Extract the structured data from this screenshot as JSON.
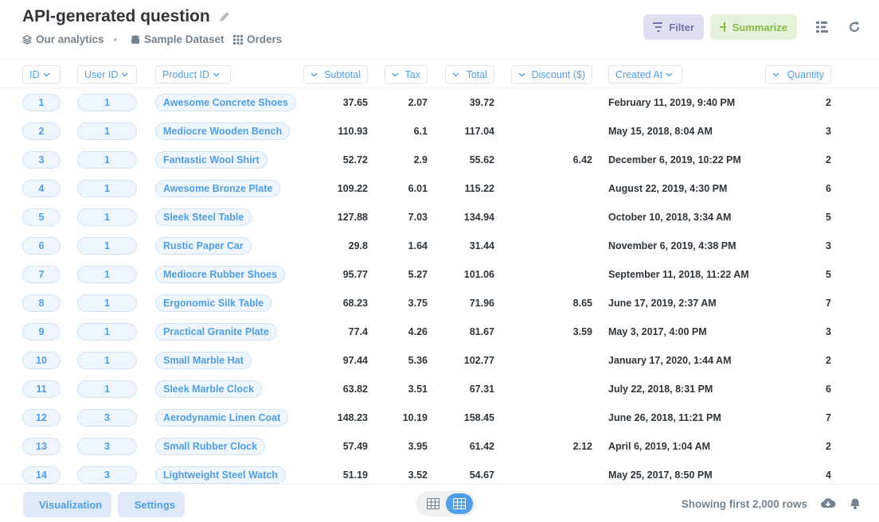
{
  "header": {
    "title": "API-generated question",
    "breadcrumbs": [
      "Our analytics",
      "Sample Dataset",
      "Orders"
    ],
    "buttons": [
      "Filter",
      "Summarize"
    ]
  },
  "table": {
    "columns": [
      "ID",
      "User ID",
      "Product ID",
      "Subtotal",
      "Tax",
      "Total",
      "Discount ($)",
      "Created At",
      "Quantity"
    ],
    "rows": [
      [
        1,
        1,
        "Awesome Concrete Shoes",
        37.65,
        2.07,
        39.72,
        null,
        "February 11, 2019, 9:40 PM",
        2
      ],
      [
        2,
        1,
        "Mediocre Wooden Bench",
        110.93,
        6.1,
        117.04,
        null,
        "May 15, 2018, 8:04 AM",
        3
      ],
      [
        3,
        1,
        "Fantastic Wool Shirt",
        52.72,
        2.9,
        55.62,
        6.42,
        "December 6, 2019, 10:22 PM",
        2
      ],
      [
        4,
        1,
        "Awesome Bronze Plate",
        109.22,
        6.01,
        115.22,
        null,
        "August 22, 2019, 4:30 PM",
        6
      ],
      [
        5,
        1,
        "Sleek Steel Table",
        127.88,
        7.03,
        134.94,
        null,
        "October 10, 2018, 3:34 AM",
        5
      ],
      [
        6,
        1,
        "Rustic Paper Car",
        29.8,
        1.64,
        31.44,
        null,
        "November 6, 2019, 4:38 PM",
        3
      ],
      [
        7,
        1,
        "Mediocre Rubber Shoes",
        95.77,
        5.27,
        101.06,
        null,
        "September 11, 2018, 11:22 AM",
        5
      ],
      [
        8,
        1,
        "Ergonomic Silk Table",
        68.23,
        3.75,
        71.96,
        8.65,
        "June 17, 2019, 2:37 AM",
        7
      ],
      [
        9,
        1,
        "Practical Granite Plate",
        77.4,
        4.26,
        81.67,
        3.59,
        "May 3, 2017, 4:00 PM",
        3
      ],
      [
        10,
        1,
        "Small Marble Hat",
        97.44,
        5.36,
        102.77,
        null,
        "January 17, 2020, 1:44 AM",
        2
      ],
      [
        11,
        1,
        "Sleek Marble Clock",
        63.82,
        3.51,
        67.31,
        null,
        "July 22, 2018, 8:31 PM",
        6
      ],
      [
        12,
        3,
        "Aerodynamic Linen Coat",
        148.23,
        10.19,
        158.45,
        null,
        "June 26, 2018, 11:21 PM",
        7
      ],
      [
        13,
        3,
        "Small Rubber Clock",
        57.49,
        3.95,
        61.42,
        2.12,
        "April 6, 2019, 1:04 AM",
        2
      ],
      [
        14,
        3,
        "Lightweight Steel Watch",
        51.19,
        3.52,
        54.67,
        null,
        "May 25, 2017, 8:50 PM",
        4
      ]
    ]
  },
  "footer": {
    "buttons": [
      "Visualization",
      "Settings"
    ],
    "status": "Showing first 2,000 rows"
  }
}
